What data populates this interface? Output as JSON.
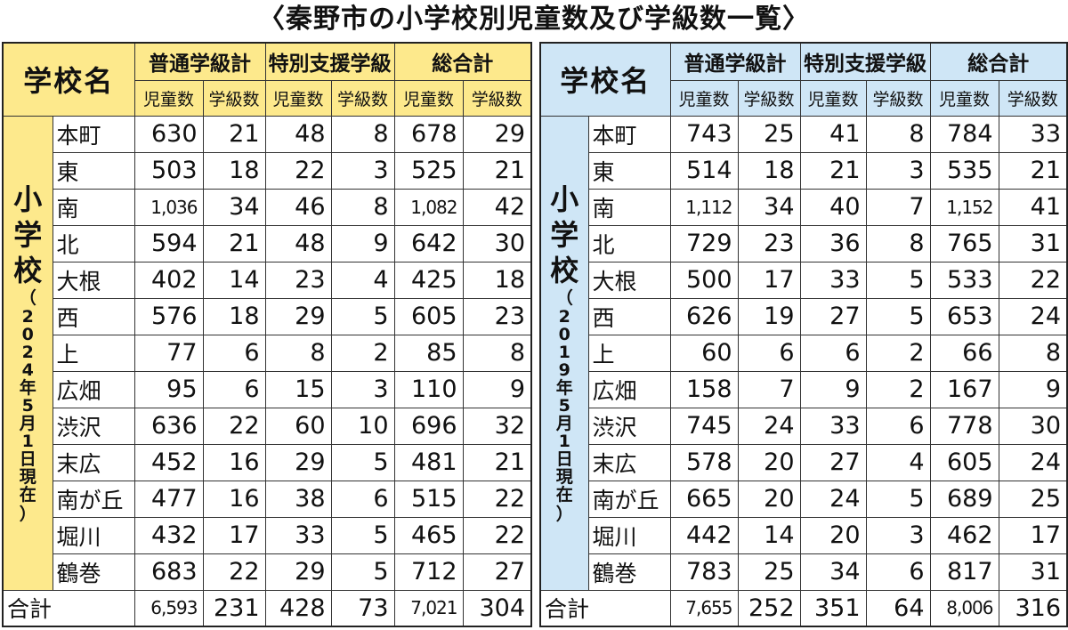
{
  "title": "〈秦野市の小学校別児童数及び学級数一覧〉",
  "headers": {
    "school": "学校名",
    "groups": [
      "普通学級計",
      "特別支援学級",
      "総合計"
    ],
    "sub": [
      "児童数",
      "学級数"
    ]
  },
  "side_label": {
    "main": [
      "小",
      "学",
      "校"
    ],
    "open": "（",
    "close": "）",
    "date_2024": [
      "2",
      "0",
      "2",
      "4",
      "年",
      "5",
      "月",
      "1",
      "日",
      "現",
      "在"
    ],
    "date_2019": [
      "2",
      "0",
      "1",
      "9",
      "年",
      "5",
      "月",
      "1",
      "日",
      "現",
      "在"
    ]
  },
  "table_2024": [
    {
      "name": "本町",
      "v": [
        "630",
        "21",
        "48",
        "8",
        "678",
        "29"
      ]
    },
    {
      "name": "東",
      "v": [
        "503",
        "18",
        "22",
        "3",
        "525",
        "21"
      ]
    },
    {
      "name": "南",
      "v": [
        "1,036",
        "34",
        "46",
        "8",
        "1,082",
        "42"
      ]
    },
    {
      "name": "北",
      "v": [
        "594",
        "21",
        "48",
        "9",
        "642",
        "30"
      ]
    },
    {
      "name": "大根",
      "v": [
        "402",
        "14",
        "23",
        "4",
        "425",
        "18"
      ]
    },
    {
      "name": "西",
      "v": [
        "576",
        "18",
        "29",
        "5",
        "605",
        "23"
      ]
    },
    {
      "name": "上",
      "v": [
        "77",
        "6",
        "8",
        "2",
        "85",
        "8"
      ]
    },
    {
      "name": "広畑",
      "v": [
        "95",
        "6",
        "15",
        "3",
        "110",
        "9"
      ]
    },
    {
      "name": "渋沢",
      "v": [
        "636",
        "22",
        "60",
        "10",
        "696",
        "32"
      ]
    },
    {
      "name": "末広",
      "v": [
        "452",
        "16",
        "29",
        "5",
        "481",
        "21"
      ]
    },
    {
      "name": "南が丘",
      "v": [
        "477",
        "16",
        "38",
        "6",
        "515",
        "22"
      ]
    },
    {
      "name": "堀川",
      "v": [
        "432",
        "17",
        "33",
        "5",
        "465",
        "22"
      ]
    },
    {
      "name": "鶴巻",
      "v": [
        "683",
        "22",
        "29",
        "5",
        "712",
        "27"
      ]
    },
    {
      "name": "合計",
      "v": [
        "6,593",
        "231",
        "428",
        "73",
        "7,021",
        "304"
      ]
    }
  ],
  "table_2019": [
    {
      "name": "本町",
      "v": [
        "743",
        "25",
        "41",
        "8",
        "784",
        "33"
      ]
    },
    {
      "name": "東",
      "v": [
        "514",
        "18",
        "21",
        "3",
        "535",
        "21"
      ]
    },
    {
      "name": "南",
      "v": [
        "1,112",
        "34",
        "40",
        "7",
        "1,152",
        "41"
      ]
    },
    {
      "name": "北",
      "v": [
        "729",
        "23",
        "36",
        "8",
        "765",
        "31"
      ]
    },
    {
      "name": "大根",
      "v": [
        "500",
        "17",
        "33",
        "5",
        "533",
        "22"
      ]
    },
    {
      "name": "西",
      "v": [
        "626",
        "19",
        "27",
        "5",
        "653",
        "24"
      ]
    },
    {
      "name": "上",
      "v": [
        "60",
        "6",
        "6",
        "2",
        "66",
        "8"
      ]
    },
    {
      "name": "広畑",
      "v": [
        "158",
        "7",
        "9",
        "2",
        "167",
        "9"
      ]
    },
    {
      "name": "渋沢",
      "v": [
        "745",
        "24",
        "33",
        "6",
        "778",
        "30"
      ]
    },
    {
      "name": "末広",
      "v": [
        "578",
        "20",
        "27",
        "4",
        "605",
        "24"
      ]
    },
    {
      "name": "南が丘",
      "v": [
        "665",
        "20",
        "24",
        "5",
        "689",
        "25"
      ]
    },
    {
      "name": "堀川",
      "v": [
        "442",
        "14",
        "20",
        "3",
        "462",
        "17"
      ]
    },
    {
      "name": "鶴巻",
      "v": [
        "783",
        "25",
        "34",
        "6",
        "817",
        "31"
      ]
    },
    {
      "name": "合計",
      "v": [
        "7,655",
        "252",
        "351",
        "64",
        "8,006",
        "316"
      ]
    }
  ],
  "colors": {
    "header_2024": "#fde98c",
    "header_2019": "#cfe6f6",
    "border": "#333333"
  }
}
